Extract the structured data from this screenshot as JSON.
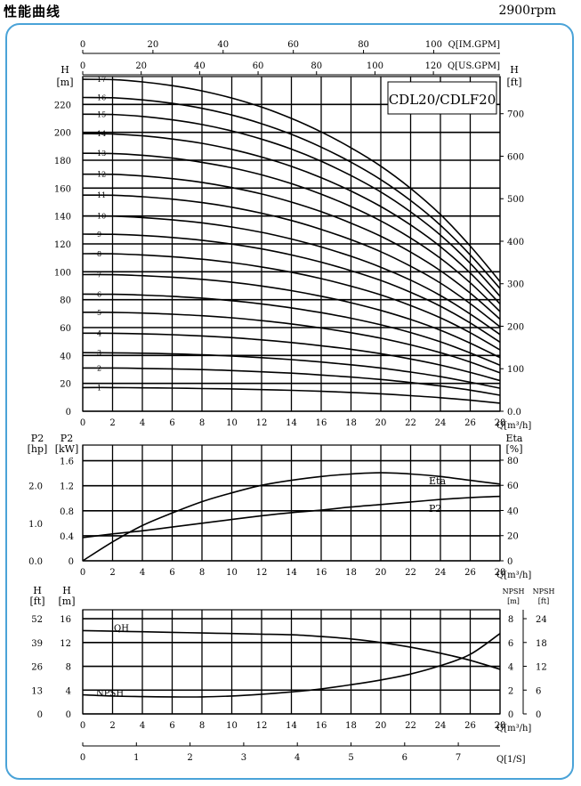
{
  "header": {
    "title": "性能曲线",
    "speed": "2900rpm"
  },
  "model": "CDL20/CDLF20",
  "top_axes": {
    "im_gpm": {
      "label": "Q[IM.GPM]",
      "ticks": [
        "0",
        "20",
        "40",
        "60",
        "80",
        "100"
      ]
    },
    "us_gpm": {
      "label": "Q[US.GPM]",
      "ticks": [
        "0",
        "20",
        "40",
        "60",
        "80",
        "100",
        "120"
      ]
    }
  },
  "flow_axis": {
    "label": "Q[m³/h]",
    "ticks": [
      "0",
      "2",
      "4",
      "6",
      "8",
      "10",
      "12",
      "14",
      "16",
      "18",
      "20",
      "22",
      "24",
      "26",
      "28"
    ]
  },
  "ls_axis": {
    "label": "Q[1/S]",
    "ticks": [
      "0",
      "1",
      "2",
      "3",
      "4",
      "5",
      "6",
      "7"
    ]
  },
  "colors": {
    "frame": "#4aa3d8",
    "line": "#000000"
  },
  "chart_data": [
    {
      "type": "line",
      "title": "CDL20/CDLF20",
      "xlabel": "Q[m³/h]",
      "ylabel_left": "H [m]",
      "ylabel_right": "H [ft]",
      "xlim": [
        0,
        28
      ],
      "ylim": [
        0,
        240
      ],
      "y_ticks_left": [
        "0",
        "20",
        "40",
        "60",
        "80",
        "100",
        "120",
        "140",
        "160",
        "180",
        "200",
        "220"
      ],
      "y_ticks_right": [
        "0.0",
        "100",
        "200",
        "300",
        "400",
        "500",
        "600",
        "700"
      ],
      "x": [
        0,
        2,
        4,
        6,
        8,
        10,
        12,
        14,
        16,
        18,
        20,
        22,
        24,
        26,
        28
      ],
      "series": [
        {
          "name": "1",
          "values": [
            17.0,
            17.0,
            16.8,
            16.6,
            16.3,
            16.0,
            15.5,
            15.0,
            14.3,
            13.5,
            12.5,
            11.2,
            9.7,
            7.9,
            5.8
          ]
        },
        {
          "name": "2",
          "values": [
            31.0,
            31.0,
            30.7,
            30.4,
            29.9,
            29.2,
            28.3,
            27.3,
            26.0,
            24.5,
            22.8,
            20.6,
            18.1,
            15.1,
            11.5
          ]
        },
        {
          "name": "3",
          "values": [
            42.0,
            41.9,
            41.6,
            41.2,
            40.5,
            39.6,
            38.4,
            37.0,
            35.3,
            33.3,
            31.0,
            28.1,
            24.8,
            20.8,
            16.5
          ]
        },
        {
          "name": "4",
          "values": [
            56.0,
            55.9,
            55.5,
            54.9,
            54.0,
            52.8,
            51.2,
            49.3,
            47.0,
            44.4,
            41.3,
            37.5,
            33.1,
            27.8,
            22.0
          ]
        },
        {
          "name": "5",
          "values": [
            71.0,
            70.9,
            70.4,
            69.6,
            68.5,
            67.0,
            65.0,
            62.6,
            59.7,
            56.3,
            52.4,
            47.6,
            42.0,
            35.3,
            27.5
          ]
        },
        {
          "name": "6",
          "values": [
            84.0,
            83.9,
            83.3,
            82.4,
            81.1,
            79.3,
            77.0,
            74.1,
            70.7,
            66.7,
            62.0,
            56.4,
            49.8,
            41.8,
            33.0
          ]
        },
        {
          "name": "7",
          "values": [
            98.0,
            97.9,
            97.2,
            96.1,
            94.6,
            92.5,
            89.8,
            86.5,
            82.5,
            77.8,
            72.3,
            65.8,
            58.1,
            48.8,
            38.5
          ]
        },
        {
          "name": "8",
          "values": [
            113.0,
            112.9,
            112.1,
            110.8,
            109.0,
            106.6,
            103.5,
            99.7,
            95.1,
            89.7,
            83.4,
            75.8,
            67.0,
            56.3,
            44.0
          ]
        },
        {
          "name": "9",
          "values": [
            127.0,
            126.9,
            126.0,
            124.6,
            122.6,
            119.9,
            116.4,
            112.1,
            106.9,
            100.8,
            93.8,
            85.3,
            75.3,
            63.3,
            49.5
          ]
        },
        {
          "name": "10",
          "values": [
            140.0,
            139.9,
            138.9,
            137.3,
            135.1,
            132.1,
            128.3,
            123.5,
            117.8,
            111.1,
            103.3,
            94.0,
            83.0,
            69.7,
            55.0
          ]
        },
        {
          "name": "11",
          "values": [
            155.0,
            154.9,
            153.8,
            152.1,
            149.6,
            146.3,
            142.0,
            136.8,
            130.4,
            123.0,
            114.4,
            104.0,
            91.9,
            77.2,
            60.5
          ]
        },
        {
          "name": "12",
          "values": [
            170.0,
            169.9,
            168.7,
            166.8,
            164.1,
            160.4,
            155.8,
            150.0,
            143.1,
            134.9,
            125.5,
            114.1,
            100.8,
            84.7,
            66.0
          ]
        },
        {
          "name": "13",
          "values": [
            185.0,
            184.8,
            183.6,
            181.5,
            178.5,
            174.6,
            169.5,
            163.2,
            155.7,
            146.8,
            136.5,
            124.2,
            109.7,
            92.1,
            71.5
          ]
        },
        {
          "name": "14",
          "values": [
            199.0,
            198.8,
            197.5,
            195.2,
            192.1,
            187.8,
            182.3,
            175.6,
            167.5,
            157.9,
            146.8,
            133.6,
            118.0,
            99.1,
            77.0
          ]
        },
        {
          "name": "15",
          "values": [
            213.0,
            212.8,
            211.4,
            209.0,
            205.6,
            201.0,
            195.1,
            188.0,
            179.3,
            169.0,
            157.2,
            143.0,
            126.3,
            106.1,
            82.5
          ]
        },
        {
          "name": "16",
          "values": [
            225.0,
            224.8,
            223.3,
            220.8,
            217.2,
            212.4,
            206.2,
            198.6,
            189.4,
            178.6,
            166.1,
            151.1,
            133.4,
            112.1,
            88.0
          ]
        },
        {
          "name": "17",
          "values": [
            238.0,
            237.8,
            236.2,
            233.5,
            229.7,
            224.6,
            218.1,
            210.0,
            200.3,
            188.9,
            175.7,
            159.8,
            141.1,
            118.5,
            93.0
          ]
        }
      ]
    },
    {
      "type": "line",
      "xlabel": "Q[m³/h]",
      "ylabel_left_hp": "P2 [hp]",
      "ylabel_left_kw": "P2 [kW]",
      "ylabel_right": "Eta [%]",
      "xlim": [
        0,
        28
      ],
      "ylim_kw": [
        0,
        1.85
      ],
      "ylim_eta": [
        0,
        92
      ],
      "ticks_hp": [
        "0.0",
        "1.0",
        "2.0"
      ],
      "ticks_kw": [
        "0",
        "0.4",
        "0.8",
        "1.2",
        "1.6"
      ],
      "ticks_eta": [
        "0",
        "20",
        "40",
        "60",
        "80"
      ],
      "x": [
        0,
        2,
        4,
        6,
        8,
        10,
        12,
        14,
        16,
        18,
        20,
        22,
        24,
        26,
        28
      ],
      "series": [
        {
          "name": "Eta",
          "axis": "eta",
          "values": [
            0,
            15,
            28,
            38,
            47,
            54,
            60,
            64,
            67,
            69,
            70,
            69,
            67,
            64,
            61
          ]
        },
        {
          "name": "P2",
          "axis": "kw",
          "values": [
            0.37,
            0.43,
            0.48,
            0.54,
            0.6,
            0.66,
            0.72,
            0.77,
            0.81,
            0.86,
            0.9,
            0.94,
            0.98,
            1.01,
            1.03
          ]
        }
      ]
    },
    {
      "type": "line",
      "xlabel": "Q[m³/h]",
      "ylabel_left_ft": "H [ft]",
      "ylabel_left_m": "H [m]",
      "ylabel_right_m": "NPSH [m]",
      "ylabel_right_ft": "NPSH [ft]",
      "xlim": [
        0,
        28
      ],
      "ylim": [
        0,
        17.5
      ],
      "ticks_ft": [
        "0",
        "13",
        "26",
        "39",
        "52"
      ],
      "ticks_m": [
        "0",
        "4",
        "8",
        "12",
        "16"
      ],
      "ticks_npsh_m": [
        "0",
        "2",
        "4",
        "6",
        "8"
      ],
      "ticks_npsh_ft": [
        "0",
        "6",
        "12",
        "18",
        "24"
      ],
      "x": [
        0,
        2,
        4,
        6,
        8,
        10,
        12,
        14,
        16,
        18,
        20,
        22,
        24,
        26,
        28
      ],
      "series": [
        {
          "name": "QH",
          "values": [
            14.0,
            13.9,
            13.8,
            13.7,
            13.6,
            13.5,
            13.4,
            13.3,
            13.0,
            12.6,
            12.0,
            11.2,
            10.2,
            9.0,
            7.5
          ]
        },
        {
          "name": "NPSH",
          "values": [
            3.2,
            3.0,
            2.9,
            2.85,
            2.85,
            3.0,
            3.3,
            3.7,
            4.2,
            4.9,
            5.7,
            6.7,
            8.1,
            10.0,
            13.5
          ]
        }
      ]
    }
  ]
}
